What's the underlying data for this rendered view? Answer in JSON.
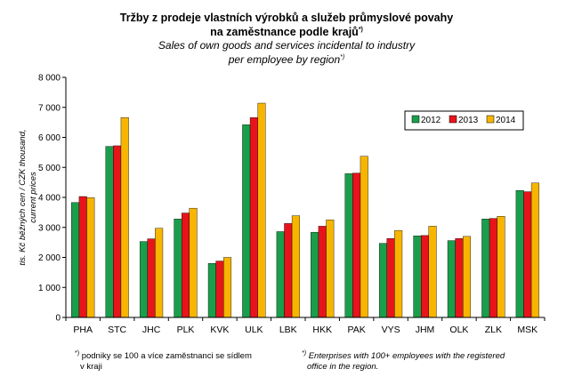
{
  "chart_data": {
    "type": "bar",
    "title_cz_line1": "Tržby z prodeje vlastních výrobků  a služeb průmyslové povahy",
    "title_cz_line2": "na zaměstnance  podle krajů",
    "title_cz_sup": "*)",
    "title_en_line1": "Sales of own goods and services incidental to industry",
    "title_en_line2": "per employee by region",
    "title_en_sup": "*)",
    "ylabel_line1": "tis. Kč běžných cen / CZK thousand,",
    "ylabel_line2": "current prices",
    "ylim": [
      0,
      8000
    ],
    "yticks": [
      0,
      1000,
      2000,
      3000,
      4000,
      5000,
      6000,
      7000,
      8000
    ],
    "ytick_labels": [
      "0",
      "1 000",
      "2 000",
      "3 000",
      "4 000",
      "5 000",
      "6 000",
      "7 000",
      "8 000"
    ],
    "categories": [
      "PHA",
      "STC",
      "JHC",
      "PLK",
      "KVK",
      "ULK",
      "LBK",
      "HKK",
      "PAK",
      "VYS",
      "JHM",
      "OLK",
      "ZLK",
      "MSK"
    ],
    "series": [
      {
        "name": "2012",
        "color": "#1a9e4b",
        "values": [
          3830,
          5700,
          2530,
          3280,
          1800,
          6420,
          2860,
          2840,
          4790,
          2470,
          2720,
          2560,
          3280,
          4230
        ]
      },
      {
        "name": "2013",
        "color": "#e8141c",
        "values": [
          4030,
          5720,
          2620,
          3480,
          1880,
          6660,
          3130,
          3040,
          4810,
          2630,
          2730,
          2630,
          3300,
          4190
        ]
      },
      {
        "name": "2014",
        "color": "#f7b500",
        "values": [
          3990,
          6660,
          2970,
          3640,
          2000,
          7140,
          3390,
          3250,
          5370,
          2900,
          3040,
          2700,
          3370,
          4480
        ]
      }
    ],
    "legend_position": "top-right",
    "grid": false
  },
  "footnotes": {
    "cz_marker": "*)",
    "cz_line1": "podniky se 100 a více zaměstnanci se sídlem",
    "cz_line2": "v kraji",
    "en_marker": "*)",
    "en_line1": "Enterprises with 100+ employees with the registered",
    "en_line2": "office in the region."
  }
}
